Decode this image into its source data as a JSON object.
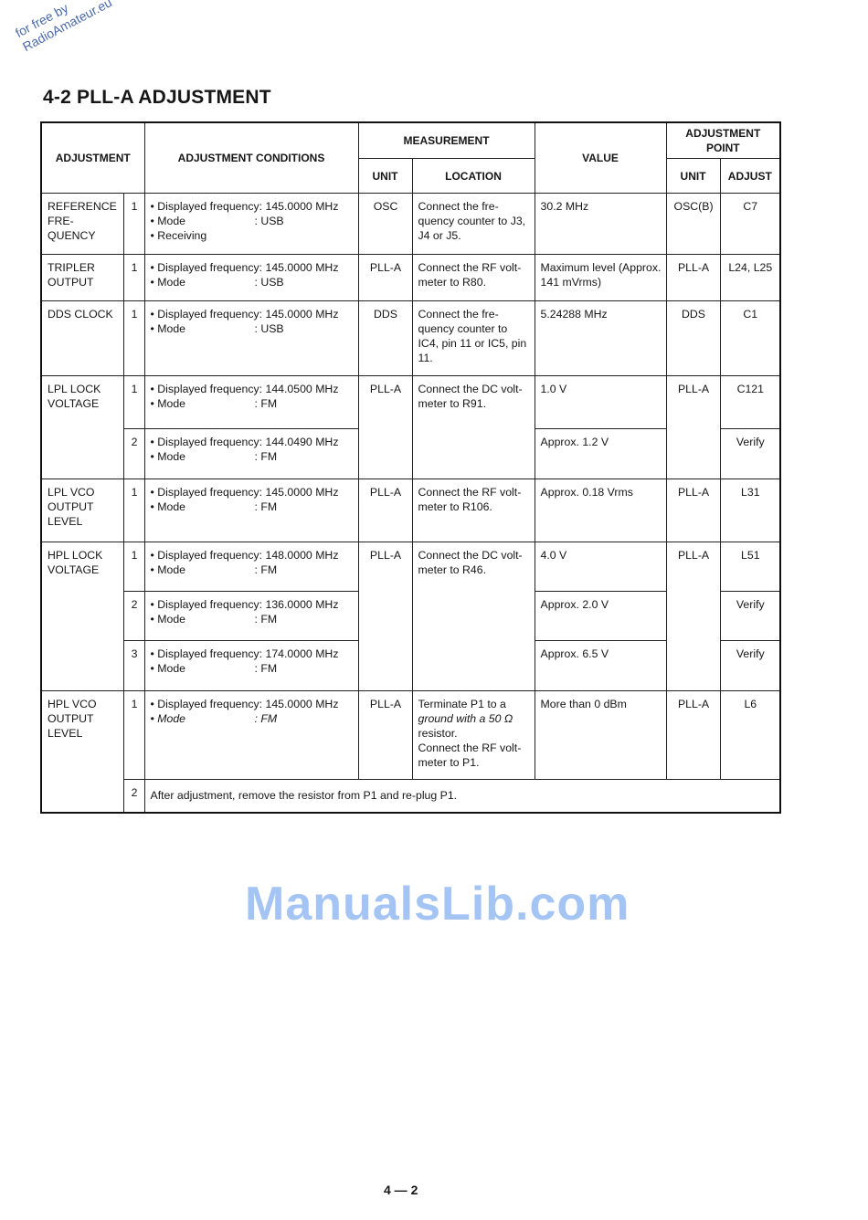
{
  "watermark_corner": [
    "for free by",
    "RadioAmateur.eu"
  ],
  "watermark_center": "ManualsLib.com",
  "title": "4-2 PLL-A ADJUSTMENT",
  "headers": {
    "adjustment": "ADJUSTMENT",
    "conditions": "ADJUSTMENT CONDITIONS",
    "measurement": "MEASUREMENT",
    "unit": "UNIT",
    "location": "LOCATION",
    "value": "VALUE",
    "adjustment_point": "ADJUSTMENT POINT",
    "adj_unit": "UNIT",
    "adjust": "ADJUST"
  },
  "groups": [
    {
      "name": "REFERENCE FRE-\nQUENCY",
      "rows": [
        {
          "n": "1",
          "freq": "• Displayed frequency: 145.0000 MHz",
          "mode": "• Mode",
          "mode_val": ": USB",
          "extra": "• Receiving",
          "unit": "OSC",
          "location": "Connect the fre-quency counter to J3, J4 or J5.",
          "value": "30.2 MHz",
          "adj_unit": "OSC(B)",
          "adjust": "C7"
        }
      ]
    },
    {
      "name": "TRIPLER OUTPUT",
      "rows": [
        {
          "n": "1",
          "freq": "• Displayed frequency: 145.0000 MHz",
          "mode": "• Mode",
          "mode_val": ": USB",
          "unit": "PLL-A",
          "location": "Connect the RF volt-meter to R80.",
          "value": "Maximum level (Approx. 141 mVrms)",
          "adj_unit": "PLL-A",
          "adjust": "L24, L25"
        }
      ]
    },
    {
      "name": "DDS CLOCK",
      "rows": [
        {
          "n": "1",
          "freq": "• Displayed frequency: 145.0000 MHz",
          "mode": "• Mode",
          "mode_val": ": USB",
          "unit": "DDS",
          "location": "Connect the fre-quency counter to IC4, pin 11 or IC5, pin 11.",
          "value": "5.24288 MHz",
          "adj_unit": "DDS",
          "adjust": "C1"
        }
      ]
    },
    {
      "name": "LPL LOCK VOLTAGE",
      "unit": "PLL-A",
      "location": "Connect the DC volt-meter to R91.",
      "adj_unit": "PLL-A",
      "rows": [
        {
          "n": "1",
          "freq": "• Displayed frequency: 144.0500 MHz",
          "mode": "• Mode",
          "mode_val": ": FM",
          "value": "1.0 V",
          "adjust": "C121"
        },
        {
          "n": "2",
          "freq": "• Displayed frequency: 144.0490 MHz",
          "mode": "• Mode",
          "mode_val": ": FM",
          "value": "Approx. 1.2 V",
          "adjust": "Verify"
        }
      ]
    },
    {
      "name": "LPL VCO OUTPUT LEVEL",
      "rows": [
        {
          "n": "1",
          "freq": "• Displayed frequency: 145.0000 MHz",
          "mode": "• Mode",
          "mode_val": ": FM",
          "unit": "PLL-A",
          "location": "Connect the RF volt-meter to R106.",
          "value": "Approx. 0.18 Vrms",
          "adj_unit": "PLL-A",
          "adjust": "L31"
        }
      ]
    },
    {
      "name": "HPL LOCK VOLTAGE",
      "unit": "PLL-A",
      "location": "Connect the DC volt-meter to R46.",
      "adj_unit": "PLL-A",
      "rows": [
        {
          "n": "1",
          "freq": "• Displayed frequency: 148.0000 MHz",
          "mode": "• Mode",
          "mode_val": ": FM",
          "value": "4.0 V",
          "adjust": "L51"
        },
        {
          "n": "2",
          "freq": "• Displayed frequency: 136.0000 MHz",
          "mode": "• Mode",
          "mode_val": ": FM",
          "value": "Approx. 2.0 V",
          "adjust": "Verify"
        },
        {
          "n": "3",
          "freq": "• Displayed frequency: 174.0000 MHz",
          "mode": "• Mode",
          "mode_val": ": FM",
          "value": "Approx. 6.5 V",
          "adjust": "Verify"
        }
      ]
    },
    {
      "name": "HPL VCO OUTPUT LEVEL",
      "rows": [
        {
          "n": "1",
          "freq": "• Displayed frequency: 145.0000 MHz",
          "mode": "• Mode",
          "mode_val": ": FM",
          "unit": "PLL-A",
          "location1": "Terminate P1 to a",
          "location2": "ground with a 50 Ω",
          "location3": "resistor.",
          "location4": "Connect the RF volt-meter to P1.",
          "value": "More than 0 dBm",
          "adj_unit": "PLL-A",
          "adjust": "L6"
        },
        {
          "n": "2",
          "note": "After adjustment, remove the resistor from P1 and re-plug P1."
        }
      ]
    }
  ],
  "page_number": "4 — 2"
}
